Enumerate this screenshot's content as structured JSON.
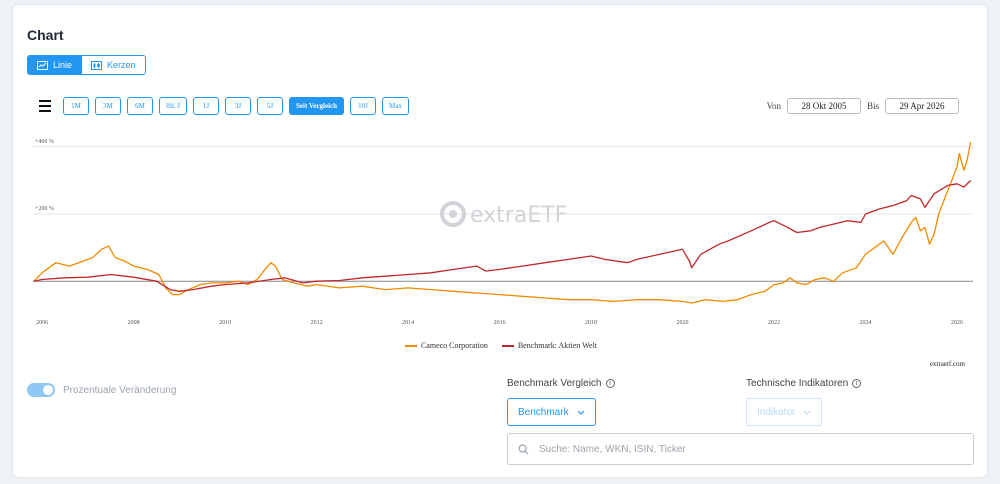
{
  "title": "Chart",
  "view_toggle": {
    "line_label": "Linie",
    "candle_label": "Kerzen"
  },
  "ranges": [
    {
      "label": "1M",
      "active": false
    },
    {
      "label": "3M",
      "active": false
    },
    {
      "label": "6M",
      "active": false
    },
    {
      "label": "lfd. J",
      "active": false
    },
    {
      "label": "1J",
      "active": false
    },
    {
      "label": "3J",
      "active": false
    },
    {
      "label": "5J",
      "active": false
    },
    {
      "label": "Seit Vergleich",
      "active": true
    },
    {
      "label": "10J",
      "active": false
    },
    {
      "label": "Max",
      "active": false
    }
  ],
  "dates": {
    "from_label": "Von",
    "from": "28 Okt 2005",
    "to_label": "Bis",
    "to": "29 Apr 2026"
  },
  "watermark": "extraETF",
  "credit": "extraetf.com",
  "chart_data": {
    "type": "line",
    "ylim": [
      -50,
      450
    ],
    "xlim": [
      2005.8,
      2026.35
    ],
    "y_ticks": [
      {
        "value": 400,
        "label": "+400 %"
      },
      {
        "value": 200,
        "label": "+200 %"
      }
    ],
    "x_ticks": [
      "2006",
      "2008",
      "2010",
      "2012",
      "2014",
      "2016",
      "2018",
      "2020",
      "2022",
      "2024",
      "2026"
    ],
    "zero_line": 0,
    "grid": true,
    "legend_position": "bottom",
    "series": [
      {
        "name": "Cameco Corporation",
        "color": "#f08a00",
        "points": [
          [
            2005.82,
            0
          ],
          [
            2006.0,
            25
          ],
          [
            2006.3,
            55
          ],
          [
            2006.6,
            45
          ],
          [
            2006.9,
            60
          ],
          [
            2007.1,
            70
          ],
          [
            2007.3,
            95
          ],
          [
            2007.45,
            105
          ],
          [
            2007.6,
            70
          ],
          [
            2007.8,
            60
          ],
          [
            2008.0,
            45
          ],
          [
            2008.3,
            35
          ],
          [
            2008.55,
            20
          ],
          [
            2008.7,
            -20
          ],
          [
            2008.85,
            -40
          ],
          [
            2009.0,
            -40
          ],
          [
            2009.2,
            -25
          ],
          [
            2009.45,
            -10
          ],
          [
            2009.7,
            -5
          ],
          [
            2010.0,
            -5
          ],
          [
            2010.3,
            0
          ],
          [
            2010.5,
            -10
          ],
          [
            2010.7,
            5
          ],
          [
            2010.9,
            40
          ],
          [
            2011.0,
            55
          ],
          [
            2011.1,
            45
          ],
          [
            2011.25,
            5
          ],
          [
            2011.5,
            -5
          ],
          [
            2011.8,
            -15
          ],
          [
            2012.0,
            -10
          ],
          [
            2012.5,
            -20
          ],
          [
            2013.0,
            -15
          ],
          [
            2013.5,
            -25
          ],
          [
            2014.0,
            -20
          ],
          [
            2014.5,
            -25
          ],
          [
            2015.0,
            -30
          ],
          [
            2015.5,
            -35
          ],
          [
            2016.0,
            -40
          ],
          [
            2016.5,
            -45
          ],
          [
            2017.0,
            -50
          ],
          [
            2017.5,
            -55
          ],
          [
            2018.0,
            -55
          ],
          [
            2018.5,
            -60
          ],
          [
            2019.0,
            -55
          ],
          [
            2019.5,
            -55
          ],
          [
            2020.0,
            -60
          ],
          [
            2020.2,
            -65
          ],
          [
            2020.5,
            -55
          ],
          [
            2020.9,
            -60
          ],
          [
            2021.2,
            -55
          ],
          [
            2021.5,
            -40
          ],
          [
            2021.8,
            -30
          ],
          [
            2022.0,
            -10
          ],
          [
            2022.2,
            -5
          ],
          [
            2022.35,
            10
          ],
          [
            2022.5,
            -5
          ],
          [
            2022.7,
            -10
          ],
          [
            2022.9,
            5
          ],
          [
            2023.1,
            10
          ],
          [
            2023.3,
            0
          ],
          [
            2023.5,
            25
          ],
          [
            2023.8,
            40
          ],
          [
            2024.0,
            80
          ],
          [
            2024.2,
            100
          ],
          [
            2024.4,
            120
          ],
          [
            2024.6,
            80
          ],
          [
            2024.8,
            130
          ],
          [
            2025.0,
            175
          ],
          [
            2025.1,
            190
          ],
          [
            2025.2,
            150
          ],
          [
            2025.3,
            160
          ],
          [
            2025.4,
            110
          ],
          [
            2025.5,
            140
          ],
          [
            2025.6,
            200
          ],
          [
            2025.8,
            270
          ],
          [
            2026.0,
            340
          ],
          [
            2026.05,
            380
          ],
          [
            2026.15,
            330
          ],
          [
            2026.22,
            360
          ],
          [
            2026.3,
            415
          ]
        ]
      },
      {
        "name": "Benchmark: Aktien Welt",
        "color": "#c0272d",
        "points": [
          [
            2005.82,
            0
          ],
          [
            2006.0,
            5
          ],
          [
            2006.5,
            10
          ],
          [
            2007.0,
            12
          ],
          [
            2007.5,
            20
          ],
          [
            2008.0,
            12
          ],
          [
            2008.5,
            0
          ],
          [
            2008.8,
            -25
          ],
          [
            2009.0,
            -30
          ],
          [
            2009.3,
            -25
          ],
          [
            2009.7,
            -15
          ],
          [
            2010.0,
            -10
          ],
          [
            2010.5,
            -5
          ],
          [
            2011.0,
            5
          ],
          [
            2011.3,
            10
          ],
          [
            2011.7,
            -5
          ],
          [
            2012.0,
            0
          ],
          [
            2012.5,
            2
          ],
          [
            2013.0,
            10
          ],
          [
            2013.5,
            15
          ],
          [
            2014.0,
            20
          ],
          [
            2014.5,
            25
          ],
          [
            2015.0,
            35
          ],
          [
            2015.5,
            45
          ],
          [
            2015.7,
            30
          ],
          [
            2016.0,
            35
          ],
          [
            2016.5,
            45
          ],
          [
            2017.0,
            55
          ],
          [
            2017.5,
            65
          ],
          [
            2018.0,
            75
          ],
          [
            2018.3,
            65
          ],
          [
            2018.8,
            55
          ],
          [
            2019.0,
            65
          ],
          [
            2019.5,
            80
          ],
          [
            2020.0,
            95
          ],
          [
            2020.15,
            60
          ],
          [
            2020.2,
            40
          ],
          [
            2020.4,
            80
          ],
          [
            2020.8,
            110
          ],
          [
            2021.0,
            120
          ],
          [
            2021.5,
            150
          ],
          [
            2021.9,
            175
          ],
          [
            2022.0,
            180
          ],
          [
            2022.3,
            160
          ],
          [
            2022.5,
            145
          ],
          [
            2022.8,
            150
          ],
          [
            2023.0,
            160
          ],
          [
            2023.3,
            170
          ],
          [
            2023.6,
            180
          ],
          [
            2023.9,
            175
          ],
          [
            2024.0,
            200
          ],
          [
            2024.3,
            215
          ],
          [
            2024.6,
            225
          ],
          [
            2024.9,
            240
          ],
          [
            2025.0,
            255
          ],
          [
            2025.2,
            245
          ],
          [
            2025.3,
            220
          ],
          [
            2025.5,
            260
          ],
          [
            2025.8,
            285
          ],
          [
            2026.0,
            290
          ],
          [
            2026.15,
            280
          ],
          [
            2026.3,
            300
          ]
        ]
      }
    ]
  },
  "controls": {
    "toggle_label": "Prozentuale Veränderung",
    "benchmark_heading": "Benchmark Vergleich",
    "benchmark_button": "Benchmark",
    "indicators_heading": "Technische Indikatoren",
    "indicator_button": "Indikator",
    "search_placeholder": "Suche: Name, WKN, ISIN, Ticker"
  }
}
